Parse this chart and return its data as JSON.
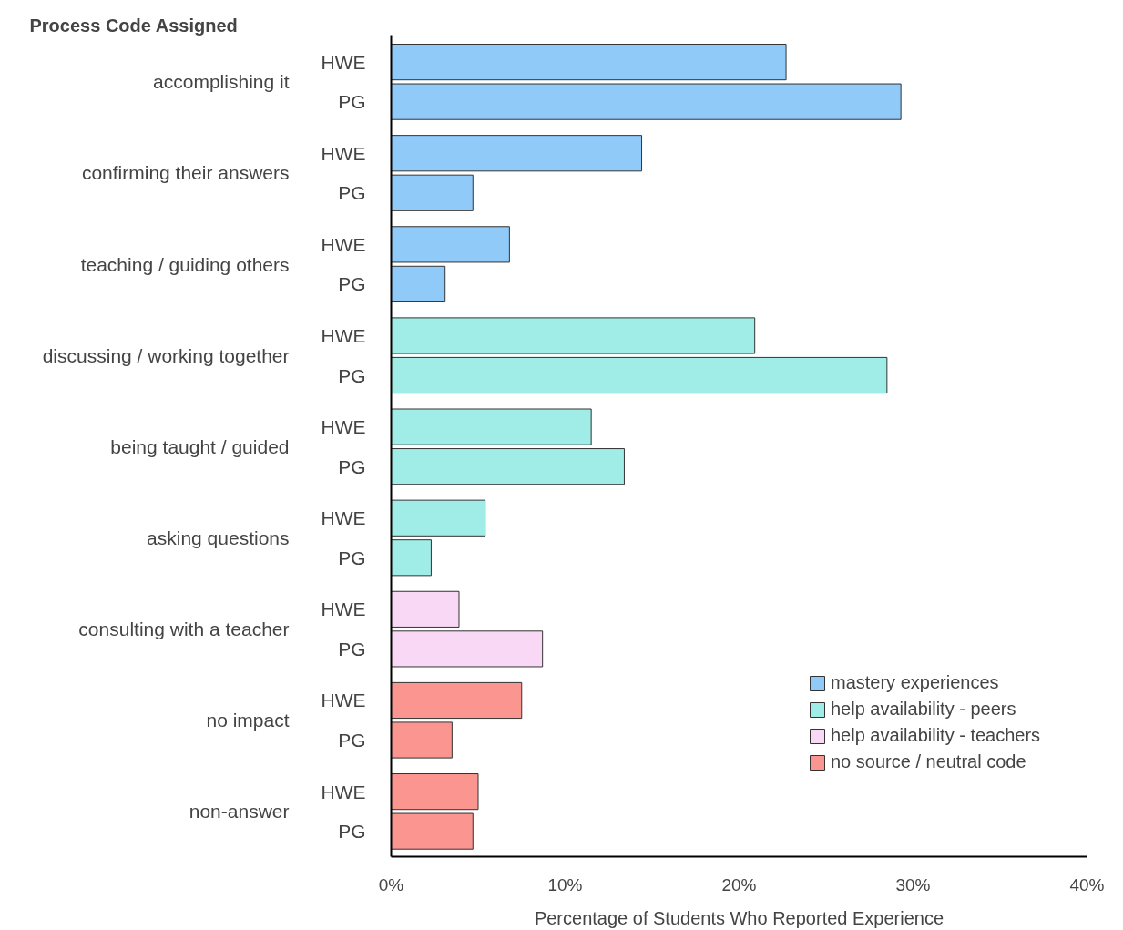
{
  "chart_data": {
    "type": "bar",
    "orientation": "horizontal",
    "ylabel": "Process Code Assigned",
    "xlabel": "Percentage of Students Who Reported Experience",
    "categories": [
      "HWE",
      "PG",
      "HWE",
      "PG",
      "HWE",
      "PG",
      "HWE",
      "PG",
      "HWE",
      "PG",
      "HWE",
      "PG",
      "HWE",
      "PG",
      "HWE",
      "PG",
      "HWE",
      "PG"
    ],
    "annotations": [
      "accomplishing it",
      "confirming their answers",
      "teaching / guiding others",
      "discussing / working together",
      "being taught / guided",
      "asking questions",
      "consulting with a teacher",
      "no impact",
      "non-answer"
    ],
    "series": [
      {
        "name": "mastery experiences",
        "color": "#90caf9",
        "values": [
          22.7,
          29.3,
          14.4,
          4.7,
          6.8,
          3.1,
          null,
          null,
          null,
          null,
          null,
          null,
          null,
          null,
          null,
          null,
          null,
          null
        ]
      },
      {
        "name": "help availability - peers",
        "color": "#a0ece6",
        "values": [
          null,
          null,
          null,
          null,
          null,
          null,
          20.9,
          28.5,
          11.5,
          13.4,
          5.4,
          2.3,
          null,
          null,
          null,
          null,
          null,
          null
        ]
      },
      {
        "name": "help availability - teachers",
        "color": "#f8d8f4",
        "values": [
          null,
          null,
          null,
          null,
          null,
          null,
          null,
          null,
          null,
          null,
          null,
          null,
          3.9,
          8.7,
          null,
          null,
          null,
          null
        ]
      },
      {
        "name": "no source / neutral code",
        "color": "#fa958f",
        "values": [
          null,
          null,
          null,
          null,
          null,
          null,
          null,
          null,
          null,
          null,
          null,
          null,
          null,
          null,
          7.5,
          3.5,
          5.0,
          4.7
        ]
      }
    ],
    "xlim": [
      0,
      40
    ],
    "xticks": [
      {
        "value": 0,
        "label": "0%"
      },
      {
        "value": 10,
        "label": "10%"
      },
      {
        "value": 20,
        "label": "20%"
      },
      {
        "value": 30,
        "label": "30%"
      },
      {
        "value": 40,
        "label": "40%"
      }
    ],
    "grid": false,
    "legend": "bottom right"
  }
}
